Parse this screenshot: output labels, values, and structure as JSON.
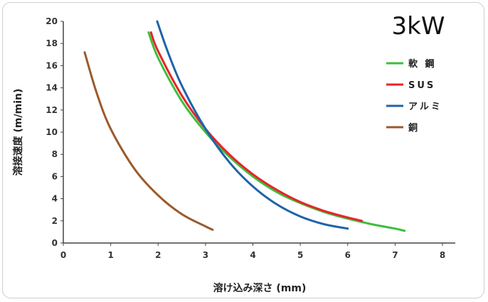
{
  "chart_data": {
    "type": "line",
    "title": "3kW",
    "xlabel": "溶け込み深さ (mm)",
    "ylabel": "溶接速度 (m/min)",
    "xlim": [
      0,
      8
    ],
    "ylim": [
      0,
      20
    ],
    "xticks": [
      "0",
      "1",
      "2",
      "3",
      "4",
      "5",
      "6",
      "7",
      "8"
    ],
    "yticks": [
      "0",
      "2",
      "4",
      "6",
      "8",
      "10",
      "12",
      "14",
      "16",
      "18",
      "20"
    ],
    "grid": false,
    "legend_position": "right",
    "series": [
      {
        "name": "軟 鋼",
        "color": "#3cbf3c",
        "points": [
          [
            1.8,
            19.0
          ],
          [
            2.0,
            16.7
          ],
          [
            2.5,
            12.8
          ],
          [
            3.0,
            10.0
          ],
          [
            3.5,
            7.8
          ],
          [
            4.0,
            6.0
          ],
          [
            4.5,
            4.6
          ],
          [
            5.0,
            3.6
          ],
          [
            5.5,
            2.8
          ],
          [
            6.0,
            2.2
          ],
          [
            6.5,
            1.7
          ],
          [
            7.0,
            1.3
          ],
          [
            7.2,
            1.1
          ]
        ]
      },
      {
        "name": "SUS",
        "color": "#e8232a",
        "points": [
          [
            1.85,
            19.0
          ],
          [
            2.0,
            17.3
          ],
          [
            2.5,
            13.3
          ],
          [
            3.0,
            10.3
          ],
          [
            3.5,
            8.0
          ],
          [
            4.0,
            6.2
          ],
          [
            4.5,
            4.8
          ],
          [
            5.0,
            3.7
          ],
          [
            5.5,
            2.9
          ],
          [
            6.0,
            2.3
          ],
          [
            6.3,
            2.0
          ]
        ]
      },
      {
        "name": "アルミ",
        "color": "#1f63a8",
        "points": [
          [
            1.98,
            20.0
          ],
          [
            2.2,
            17.3
          ],
          [
            2.5,
            14.2
          ],
          [
            3.0,
            10.3
          ],
          [
            3.5,
            7.3
          ],
          [
            4.0,
            5.1
          ],
          [
            4.5,
            3.5
          ],
          [
            5.0,
            2.4
          ],
          [
            5.5,
            1.7
          ],
          [
            6.0,
            1.3
          ]
        ]
      },
      {
        "name": "銅",
        "color": "#9b5a2c",
        "points": [
          [
            0.45,
            17.2
          ],
          [
            0.7,
            13.6
          ],
          [
            1.0,
            10.3
          ],
          [
            1.5,
            6.7
          ],
          [
            2.0,
            4.3
          ],
          [
            2.5,
            2.6
          ],
          [
            3.0,
            1.5
          ],
          [
            3.15,
            1.2
          ]
        ]
      }
    ]
  }
}
